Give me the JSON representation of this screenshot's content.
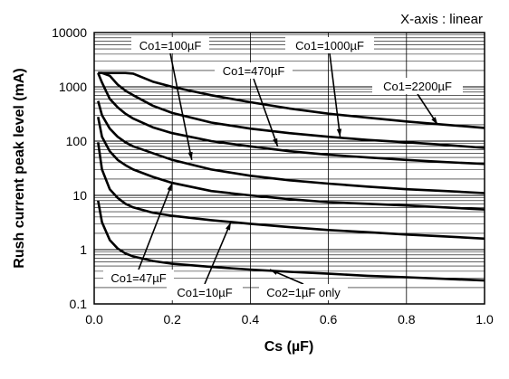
{
  "chart_data": {
    "type": "line",
    "title": "",
    "note": "X-axis : linear",
    "xlabel": "Cs (µF)",
    "ylabel": "Rush current peak level (mA)",
    "xlim": [
      0.0,
      1.0
    ],
    "ylim": [
      0.1,
      10000
    ],
    "yscale": "log",
    "grid": true,
    "xticks": [
      "0.0",
      "0.2",
      "0.4",
      "0.6",
      "0.8",
      "1.0"
    ],
    "yticks": [
      "0.1",
      "1",
      "10",
      "100",
      "1000",
      "10000"
    ],
    "x": [
      0.01,
      0.02,
      0.04,
      0.06,
      0.08,
      0.1,
      0.15,
      0.2,
      0.3,
      0.4,
      0.5,
      0.6,
      0.7,
      0.8,
      0.9,
      1.0
    ],
    "series": [
      {
        "name": "Co1=2200µF",
        "values": [
          1800,
          1800,
          1800,
          1800,
          1800,
          1750,
          1250,
          1000,
          700,
          520,
          400,
          320,
          270,
          230,
          200,
          175
        ]
      },
      {
        "name": "Co1=1000µF",
        "values": [
          1800,
          1800,
          1600,
          1100,
          850,
          700,
          450,
          330,
          220,
          170,
          140,
          120,
          105,
          95,
          85,
          75
        ]
      },
      {
        "name": "Co1=470µF",
        "values": [
          1800,
          1200,
          600,
          420,
          320,
          260,
          180,
          140,
          100,
          80,
          65,
          56,
          50,
          45,
          41,
          38
        ]
      },
      {
        "name": "Co1=100µF",
        "values": [
          550,
          300,
          170,
          120,
          95,
          80,
          60,
          45,
          30,
          23,
          19,
          16.5,
          14.5,
          13,
          12,
          11
        ]
      },
      {
        "name": "Co1=47µF",
        "values": [
          280,
          120,
          65,
          45,
          36,
          30,
          22,
          17,
          12,
          10,
          8.5,
          7.5,
          7,
          6.5,
          6,
          5.5
        ]
      },
      {
        "name": "Co1=10µF",
        "values": [
          95,
          30,
          13,
          9,
          7,
          6,
          4.8,
          4.2,
          3.5,
          3,
          2.6,
          2.3,
          2.1,
          1.9,
          1.75,
          1.6
        ]
      },
      {
        "name": "Co2=1µF only",
        "values": [
          8,
          3.2,
          1.5,
          1.05,
          0.85,
          0.75,
          0.62,
          0.55,
          0.48,
          0.43,
          0.39,
          0.36,
          0.33,
          0.31,
          0.29,
          0.27
        ]
      }
    ],
    "annotations": [
      {
        "text": "Co1=100µF",
        "series": "Co1=100µF",
        "x": 0.25,
        "y": 45
      },
      {
        "text": "Co1=1000µF",
        "series": "Co1=1000µF",
        "x": 0.63,
        "y": 120
      },
      {
        "text": "Co1=470µF",
        "series": "Co1=470µF",
        "x": 0.47,
        "y": 80
      },
      {
        "text": "Co1=2200µF",
        "series": "Co1=2200µF",
        "x": 0.88,
        "y": 200
      },
      {
        "text": "Co1=47µF",
        "series": "Co1=47µF",
        "x": 0.2,
        "y": 17
      },
      {
        "text": "Co1=10µF",
        "series": "Co1=10µF",
        "x": 0.35,
        "y": 3.2
      },
      {
        "text": "Co2=1µF only",
        "series": "Co2=1µF only",
        "x": 0.45,
        "y": 0.43
      }
    ],
    "colors": {
      "line": "#000000",
      "grid": "#000000",
      "background": "#ffffff"
    }
  }
}
